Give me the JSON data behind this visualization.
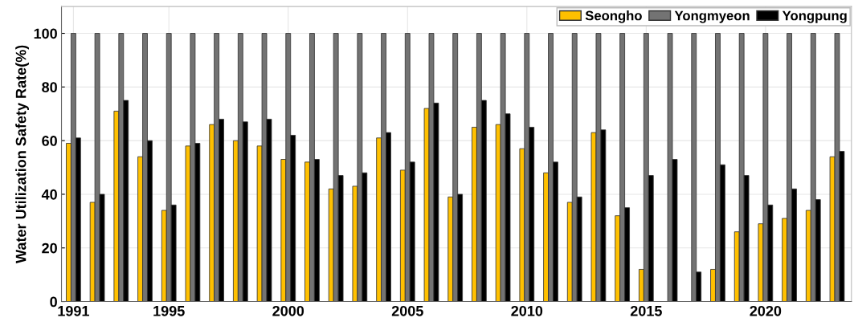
{
  "chart_data": {
    "type": "bar",
    "ylabel": "Water Utilization Safety Rate(%)",
    "x": [
      1991,
      1992,
      1993,
      1994,
      1995,
      1996,
      1997,
      1998,
      1999,
      2000,
      2001,
      2002,
      2003,
      2004,
      2005,
      2006,
      2007,
      2008,
      2009,
      2010,
      2011,
      2012,
      2013,
      2014,
      2015,
      2016,
      2017,
      2018,
      2019,
      2020,
      2021,
      2022,
      2023
    ],
    "series": [
      {
        "name": "Seongho",
        "color": "#ffc000",
        "values": [
          59,
          37,
          71,
          54,
          34,
          58,
          66,
          60,
          58,
          53,
          52,
          42,
          43,
          61,
          49,
          72,
          39,
          65,
          66,
          57,
          48,
          37,
          63,
          32,
          12,
          0,
          0,
          12,
          26,
          29,
          31,
          34,
          54
        ]
      },
      {
        "name": "Yongmyeon",
        "color": "#737373",
        "values": [
          100,
          100,
          100,
          100,
          100,
          100,
          100,
          100,
          100,
          100,
          100,
          100,
          100,
          100,
          100,
          100,
          100,
          100,
          100,
          100,
          100,
          100,
          100,
          100,
          100,
          100,
          100,
          100,
          100,
          100,
          100,
          100,
          100
        ]
      },
      {
        "name": "Yongpung",
        "color": "#000000",
        "values": [
          61,
          40,
          75,
          60,
          36,
          59,
          68,
          67,
          68,
          62,
          53,
          47,
          48,
          63,
          52,
          74,
          40,
          75,
          70,
          65,
          52,
          39,
          64,
          35,
          47,
          53,
          11,
          51,
          47,
          36,
          42,
          38,
          56
        ]
      }
    ],
    "xlim": [
      1990.5,
      2023.6
    ],
    "xticks": [
      1991,
      1995,
      2000,
      2005,
      2010,
      2015,
      2020
    ],
    "ylim": [
      0,
      110
    ],
    "yticks": [
      0,
      20,
      40,
      60,
      80,
      100
    ],
    "grid": true,
    "legend": "top right"
  }
}
